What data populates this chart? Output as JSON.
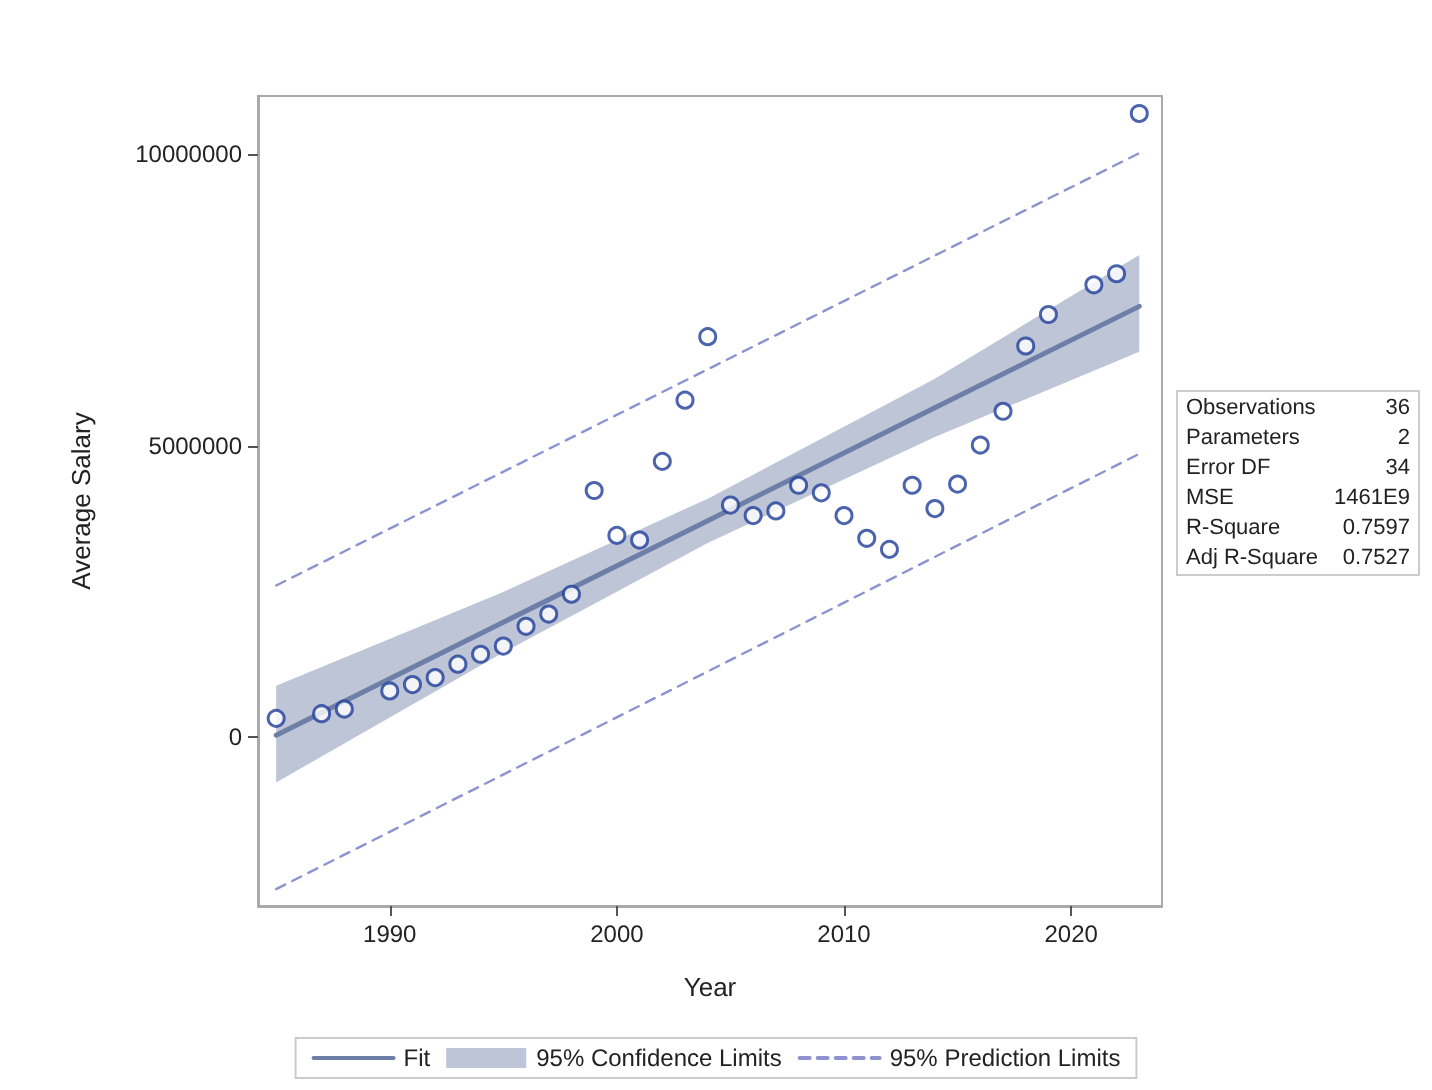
{
  "chart_data": {
    "type": "scatter",
    "xlabel": "Year",
    "ylabel": "Average Salary",
    "xlim": [
      1984.2,
      2024
    ],
    "xticks": [
      1990,
      2000,
      2010,
      2020
    ],
    "ylim": [
      -2900000,
      11000000
    ],
    "yticks": [
      0,
      5000000,
      10000000
    ],
    "grid": false,
    "legend": "bottom",
    "marker": "circle",
    "annotations": [
      "95% Confidence Limits",
      "Observations",
      "36",
      "Parameters",
      "2",
      "Error DF",
      "34",
      "MSE",
      "1461E9",
      "R-Square",
      "0.7597",
      "Adj R-Square",
      "0.7527"
    ],
    "series": [
      {
        "type": "line",
        "name": "Fit",
        "color": "#6d7fa6",
        "line_style": "solid",
        "marker": "none",
        "x": [
          1985,
          1995,
          2004,
          2014,
          2023
        ],
        "values": [
          30000,
          1970000,
          3710000,
          5650000,
          7390000
        ],
        "lower": [
          -780000,
          1450000,
          3330000,
          5150000,
          6610000
        ],
        "upper": [
          880000,
          2490000,
          4090000,
          6150000,
          8270000
        ]
      },
      {
        "type": "line",
        "name": "95% Prediction Limits",
        "color": "#8e93cf",
        "line_style": "dashed",
        "marker": "none",
        "x": [
          1985,
          2023
        ],
        "values": [
          2600000,
          10020000
        ]
      },
      {
        "type": "line",
        "color": "#8e93cf",
        "line_style": "dashed",
        "marker": "none",
        "x": [
          1985,
          2023
        ],
        "values": [
          -2610000,
          4860000
        ]
      },
      {
        "color": "#1f3d99",
        "x": [
          1985,
          1987,
          1988,
          1990,
          1991,
          1992,
          1993,
          1994,
          1995,
          1996,
          1997,
          1998,
          1999,
          2000,
          2001,
          2002,
          2003,
          2004,
          2005,
          2006,
          2007,
          2008,
          2009,
          2010,
          2011,
          2012,
          2013,
          2014,
          2015,
          2016,
          2017,
          2018,
          2019,
          2021,
          2022,
          2023
        ],
        "values": [
          320000,
          400000,
          480000,
          790000,
          900000,
          1020000,
          1250000,
          1420000,
          1560000,
          1900000,
          2110000,
          2450000,
          4230000,
          3460000,
          3380000,
          4730000,
          5780000,
          6870000,
          3980000,
          3800000,
          3880000,
          4320000,
          4190000,
          3800000,
          3410000,
          3220000,
          4320000,
          3920000,
          4340000,
          5010000,
          5590000,
          6710000,
          7250000,
          7760000,
          7950000,
          10700000
        ]
      }
    ]
  }
}
